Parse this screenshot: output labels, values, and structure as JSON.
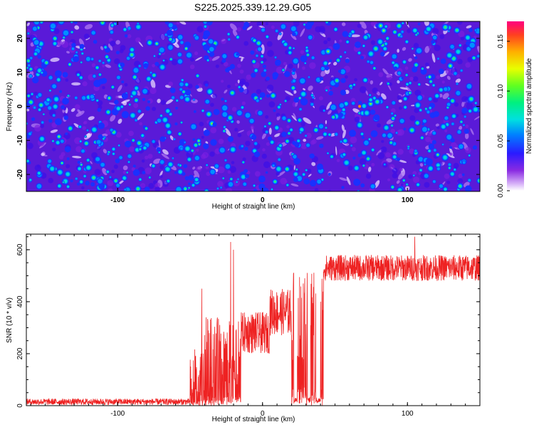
{
  "title": "S225.2025.339.12.29.G05",
  "chart_data": [
    {
      "type": "heatmap",
      "title": "S225.2025.339.12.29.G05",
      "xlabel": "Height of straight line (km)",
      "ylabel": "Frequency (Hz)",
      "xlim": [
        -163,
        150
      ],
      "ylim": [
        -25,
        25
      ],
      "x_ticks": [
        -100,
        0,
        100
      ],
      "x_tick_labels": [
        "-100",
        "0",
        "100"
      ],
      "y_ticks": [
        -20,
        -10,
        0,
        10,
        20
      ],
      "y_tick_labels": [
        "-20",
        "-10",
        "0",
        "10",
        "20"
      ],
      "colorbar": {
        "label": "Normalized spectral amplitude",
        "range": [
          0,
          0.17
        ],
        "ticks": [
          0,
          0.05,
          0.1,
          0.15
        ],
        "tick_labels": [
          "0.00",
          "0.05",
          "0.10",
          "0.15"
        ]
      },
      "description_values": {
        "background_amplitude": 0.005,
        "typical_blob_amplitude": 0.04,
        "max_blob_amplitude": 0.16
      }
    },
    {
      "type": "line",
      "xlabel": "Height of straight line (km)",
      "ylabel": "SNR (10 * v/v)",
      "xlim": [
        -163,
        150
      ],
      "ylim": [
        0,
        660
      ],
      "x_ticks": [
        -100,
        0,
        100
      ],
      "x_tick_labels": [
        "-100",
        "0",
        "100"
      ],
      "y_ticks": [
        0,
        200,
        400,
        600
      ],
      "y_tick_labels": [
        "0",
        "200",
        "400",
        "600"
      ],
      "series": [
        {
          "name": "SNR",
          "color": "#ee2222",
          "segments": [
            {
              "x": [
                -163,
                -50
              ],
              "mean": 15,
              "noise": 12
            },
            {
              "x": [
                -50,
                -40
              ],
              "mean": 100,
              "noise": 120
            },
            {
              "x": [
                -40,
                -30
              ],
              "mean": 200,
              "noise": 140
            },
            {
              "x": [
                -30,
                -15
              ],
              "mean": 180,
              "noise": 150
            },
            {
              "x": [
                -15,
                5
              ],
              "mean": 280,
              "noise": 80
            },
            {
              "x": [
                5,
                20
              ],
              "mean": 360,
              "noise": 90
            },
            {
              "x": [
                20,
                42
              ],
              "mean": 350,
              "noise": 180
            },
            {
              "x": [
                42,
                150
              ],
              "mean": 530,
              "noise": 50
            }
          ],
          "spikes": [
            {
              "x": -42,
              "y": 450
            },
            {
              "x": -22,
              "y": 630
            },
            {
              "x": -20,
              "y": 600
            },
            {
              "x": 105,
              "y": 650
            }
          ],
          "dropouts": [
            {
              "x": [
                22,
                24
              ],
              "y": 20
            },
            {
              "x": [
                31,
                33
              ],
              "y": 20
            },
            {
              "x": [
                37,
                40
              ],
              "y": 20
            }
          ]
        }
      ]
    }
  ]
}
